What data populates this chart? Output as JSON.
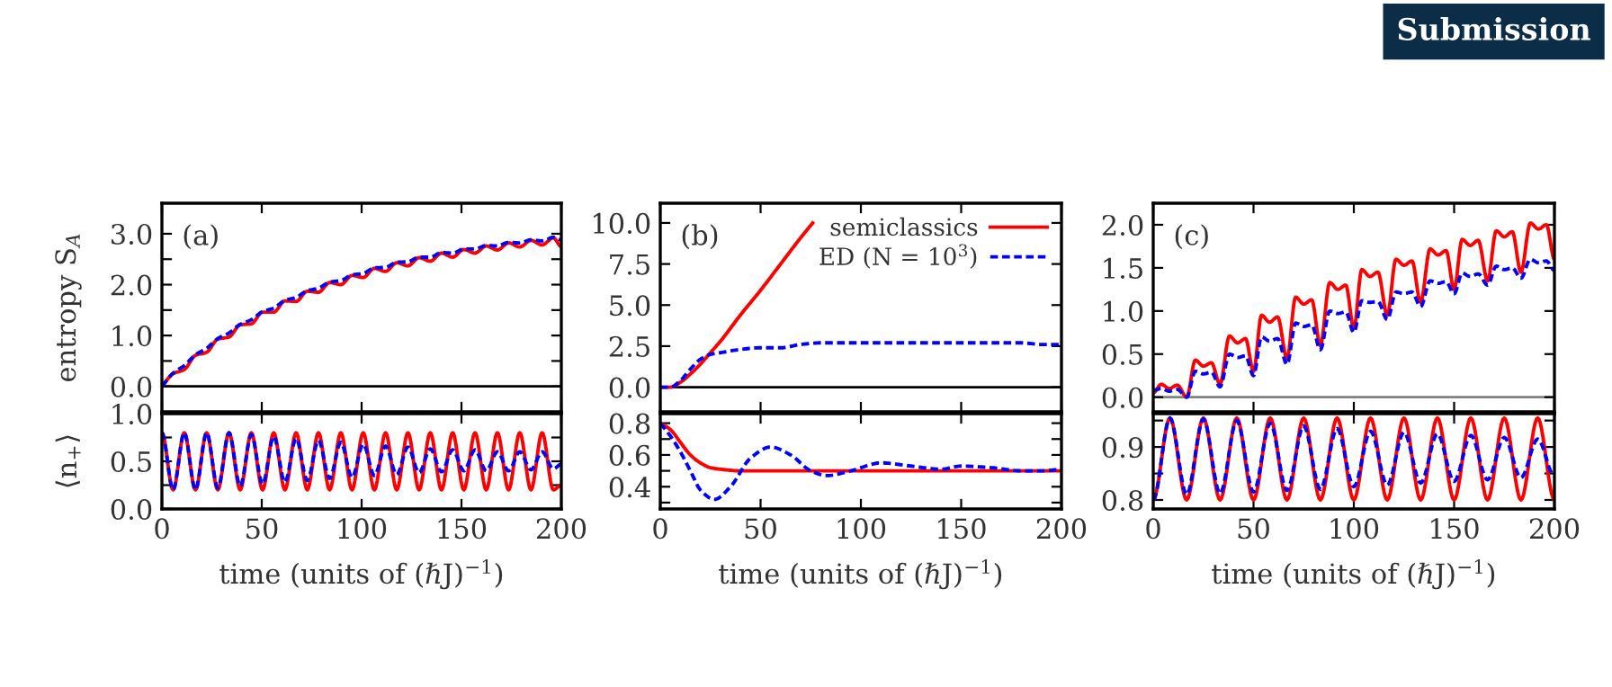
{
  "chart_data": [
    {
      "type": "line",
      "ylabel": "entropy S$_{A}$",
      "annotations": [
        "(a)"
      ],
      "tick_labels": "y",
      "xlim": [
        0,
        200
      ],
      "xticks": [
        0,
        50,
        100,
        150,
        200
      ],
      "ylim": [
        -0.5,
        3.6
      ],
      "yticks": [
        {
          "value": 0,
          "label": "0.0"
        },
        {
          "value": 0.5,
          "label": null
        },
        {
          "value": 1,
          "label": "1.0"
        },
        {
          "value": 1.5,
          "label": null
        },
        {
          "value": 2,
          "label": "2.0"
        },
        {
          "value": 2.5,
          "label": null
        },
        {
          "value": 3,
          "label": "3.0"
        }
      ],
      "ref_lines": [
        {
          "axis": "y",
          "value": 0,
          "color": "#000000"
        }
      ],
      "series": [
        {
          "color": "#ff0000",
          "line_style": "solid",
          "x": [
            0,
            5.6,
            11.2,
            16.8,
            22.4,
            28,
            33.6,
            39.2,
            44.8,
            50.4,
            56,
            61.6,
            67.2,
            72.8,
            78.4,
            84,
            89.6,
            95.2,
            100.8,
            106.4,
            112,
            117.6,
            123.2,
            128.8,
            134.4,
            140,
            145.6,
            151.2,
            156.8,
            162.4,
            168,
            173.6,
            179.2,
            184.8,
            190.4,
            196,
            200
          ],
          "values": [
            0,
            0.25,
            0.33,
            0.61,
            0.67,
            0.93,
            0.97,
            1.21,
            1.23,
            1.46,
            1.46,
            1.68,
            1.67,
            1.87,
            1.85,
            2.04,
            2.0,
            2.18,
            2.14,
            2.32,
            2.26,
            2.43,
            2.37,
            2.53,
            2.46,
            2.62,
            2.54,
            2.69,
            2.62,
            2.76,
            2.68,
            2.82,
            2.74,
            2.87,
            2.78,
            2.92,
            2.75
          ]
        },
        {
          "color": "#0000ff",
          "line_style": "dashed",
          "x": [
            0,
            5.6,
            11.2,
            16.8,
            22.4,
            28,
            33.6,
            39.2,
            44.8,
            50.4,
            56,
            61.6,
            67.2,
            72.8,
            78.4,
            84,
            89.6,
            95.2,
            100.8,
            106.4,
            112,
            117.6,
            123.2,
            128.8,
            134.4,
            140,
            145.6,
            151.2,
            156.8,
            162.4,
            168,
            173.6,
            179.2,
            184.8,
            190.4,
            196,
            200
          ],
          "values": [
            0,
            0.26,
            0.41,
            0.62,
            0.75,
            0.94,
            1.05,
            1.22,
            1.31,
            1.47,
            1.54,
            1.69,
            1.75,
            1.88,
            1.93,
            2.05,
            2.08,
            2.19,
            2.22,
            2.33,
            2.34,
            2.44,
            2.45,
            2.54,
            2.54,
            2.63,
            2.62,
            2.7,
            2.7,
            2.77,
            2.76,
            2.83,
            2.82,
            2.88,
            2.86,
            2.93,
            2.88
          ]
        }
      ]
    },
    {
      "type": "line",
      "ylabel": "⟨n$_{+}$⟩",
      "xlabel": "time (units of (ℏJ)$^{−1}$)",
      "xlim": [
        0,
        200
      ],
      "xticks": [
        0,
        50,
        100,
        150,
        200
      ],
      "ylim": [
        0,
        1
      ],
      "yticks": [
        {
          "value": 0,
          "label": "0.0"
        },
        {
          "value": 0.25,
          "label": null
        },
        {
          "value": 0.5,
          "label": "0.5"
        },
        {
          "value": 0.75,
          "label": null
        },
        {
          "value": 1,
          "label": "1.0"
        }
      ],
      "series": [
        {
          "color": "#ff0000",
          "line_style": "solid",
          "x": [
            0,
            5.6,
            11.2,
            16.8,
            22.4,
            28,
            33.6,
            39.2,
            44.8,
            50.4,
            56,
            61.6,
            67.2,
            72.8,
            78.4,
            84,
            89.6,
            95.2,
            100.8,
            106.4,
            112,
            117.6,
            123.2,
            128.8,
            134.4,
            140,
            145.6,
            151.2,
            156.8,
            162.4,
            168,
            173.6,
            179.2,
            184.8,
            190.4,
            196,
            200
          ],
          "values": [
            0.8,
            0.2,
            0.8,
            0.2,
            0.8,
            0.2,
            0.8,
            0.2,
            0.8,
            0.2,
            0.8,
            0.2,
            0.8,
            0.2,
            0.8,
            0.2,
            0.8,
            0.2,
            0.8,
            0.2,
            0.8,
            0.2,
            0.8,
            0.2,
            0.8,
            0.2,
            0.8,
            0.2,
            0.8,
            0.2,
            0.8,
            0.2,
            0.8,
            0.2,
            0.8,
            0.2,
            0.25
          ]
        },
        {
          "color": "#0000ff",
          "line_style": "dashed",
          "x": [
            0,
            5.6,
            11.2,
            16.8,
            22.4,
            28,
            33.6,
            39.2,
            44.8,
            50.4,
            56,
            61.6,
            67.2,
            72.8,
            78.4,
            84,
            89.6,
            95.2,
            100.8,
            106.4,
            112,
            117.6,
            123.2,
            128.8,
            134.4,
            140,
            145.6,
            151.2,
            156.8,
            162.4,
            168,
            173.6,
            179.2,
            184.8,
            190.4,
            196,
            200
          ],
          "values": [
            0.8,
            0.2,
            0.8,
            0.2,
            0.8,
            0.22,
            0.8,
            0.24,
            0.78,
            0.26,
            0.76,
            0.28,
            0.74,
            0.3,
            0.72,
            0.32,
            0.7,
            0.33,
            0.68,
            0.35,
            0.66,
            0.36,
            0.65,
            0.38,
            0.63,
            0.39,
            0.62,
            0.4,
            0.62,
            0.4,
            0.6,
            0.4,
            0.6,
            0.41,
            0.6,
            0.42,
            0.47
          ]
        }
      ]
    },
    {
      "type": "line",
      "annotations": [
        "(b)"
      ],
      "tick_labels": "y",
      "legend": "top right",
      "xlim": [
        0,
        200
      ],
      "xticks": [
        0,
        50,
        100,
        150,
        200
      ],
      "ylim": [
        -1.5,
        11.2
      ],
      "yticks": [
        {
          "value": 0,
          "label": "0.0"
        },
        {
          "value": 2.5,
          "label": "2.5"
        },
        {
          "value": 5,
          "label": "5.0"
        },
        {
          "value": 7.5,
          "label": "7.5"
        },
        {
          "value": 10,
          "label": "10.0"
        }
      ],
      "ref_lines": [
        {
          "axis": "y",
          "value": 0,
          "color": "#000000"
        }
      ],
      "series": [
        {
          "name": "semiclassics",
          "color": "#ff0000",
          "line_style": "solid",
          "x": [
            0,
            5,
            10,
            15,
            20,
            25,
            30,
            40,
            50,
            60,
            70,
            76
          ],
          "values": [
            0,
            0,
            0.3,
            0.8,
            1.4,
            2.1,
            2.8,
            4.4,
            5.9,
            7.5,
            9.1,
            10.0
          ]
        },
        {
          "name": "ED (N = 10$^{3}$)",
          "color": "#0000ff",
          "line_style": "dashed",
          "x": [
            0,
            5,
            10,
            15,
            20,
            25,
            30,
            40,
            50,
            60,
            70,
            80,
            90,
            100,
            110,
            120,
            130,
            140,
            150,
            160,
            170,
            180,
            190,
            200
          ],
          "values": [
            0,
            0,
            0.4,
            1.1,
            1.7,
            2.0,
            2.1,
            2.3,
            2.4,
            2.4,
            2.6,
            2.7,
            2.7,
            2.7,
            2.7,
            2.7,
            2.7,
            2.7,
            2.7,
            2.7,
            2.7,
            2.7,
            2.6,
            2.6
          ]
        }
      ]
    },
    {
      "type": "line",
      "xlabel": "time (units of (ℏJ)$^{−1}$)",
      "xlim": [
        0,
        200
      ],
      "xticks": [
        0,
        50,
        100,
        150,
        200
      ],
      "ylim": [
        0.26,
        0.86
      ],
      "yticks": [
        {
          "value": 0.3,
          "label": null
        },
        {
          "value": 0.4,
          "label": "0.4"
        },
        {
          "value": 0.5,
          "label": null
        },
        {
          "value": 0.6,
          "label": "0.6"
        },
        {
          "value": 0.7,
          "label": null
        },
        {
          "value": 0.8,
          "label": "0.8"
        }
      ],
      "series": [
        {
          "color": "#ff0000",
          "line_style": "solid",
          "x": [
            0,
            5,
            10,
            15,
            20,
            25,
            30,
            40,
            200
          ],
          "values": [
            0.8,
            0.76,
            0.68,
            0.6,
            0.55,
            0.52,
            0.51,
            0.5,
            0.5
          ]
        },
        {
          "color": "#0000ff",
          "line_style": "dashed",
          "x": [
            0,
            5,
            10,
            15,
            20,
            27,
            35,
            45,
            55,
            65,
            75,
            83,
            95,
            110,
            125,
            140,
            150,
            165,
            180,
            190,
            200
          ],
          "values": [
            0.8,
            0.72,
            0.62,
            0.5,
            0.38,
            0.32,
            0.4,
            0.58,
            0.65,
            0.6,
            0.5,
            0.47,
            0.5,
            0.55,
            0.53,
            0.51,
            0.53,
            0.52,
            0.5,
            0.5,
            0.51
          ]
        }
      ]
    },
    {
      "type": "line",
      "annotations": [
        "(c)",
        "Submission"
      ],
      "tick_labels": "y",
      "xlim": [
        0,
        200
      ],
      "xticks": [
        0,
        50,
        100,
        150,
        200
      ],
      "ylim": [
        -0.17,
        2.25
      ],
      "yticks": [
        {
          "value": 0,
          "label": "0.0"
        },
        {
          "value": 0.5,
          "label": "0.5"
        },
        {
          "value": 1,
          "label": "1.0"
        },
        {
          "value": 1.5,
          "label": "1.5"
        },
        {
          "value": 2,
          "label": "2.0"
        }
      ],
      "ref_lines": [
        {
          "axis": "y",
          "value": 0,
          "color": "#808080"
        }
      ],
      "series": [
        {
          "color": "#ff0000",
          "line_style": "solid",
          "x": [
            0,
            4,
            8,
            12,
            16.7,
            21,
            25,
            29,
            33.3,
            38,
            42,
            46,
            50,
            54,
            58,
            62,
            66.7,
            71,
            75,
            79,
            83.3,
            88,
            92,
            96,
            100,
            104,
            108,
            112,
            116.7,
            121,
            125,
            129,
            133.3,
            138,
            142,
            146,
            150,
            154,
            158,
            162,
            166.7,
            171,
            175,
            179,
            183.3,
            188,
            192,
            196,
            200
          ],
          "values": [
            0.05,
            0.15,
            0.1,
            0.14,
            0.0,
            0.43,
            0.36,
            0.4,
            0.15,
            0.71,
            0.63,
            0.68,
            0.3,
            0.95,
            0.87,
            0.93,
            0.45,
            1.16,
            1.08,
            1.13,
            0.6,
            1.33,
            1.25,
            1.3,
            0.8,
            1.48,
            1.4,
            1.45,
            0.95,
            1.6,
            1.53,
            1.58,
            1.1,
            1.72,
            1.65,
            1.7,
            1.25,
            1.83,
            1.76,
            1.82,
            1.35,
            1.93,
            1.86,
            1.92,
            1.45,
            2.02,
            1.95,
            2.0,
            1.6
          ]
        },
        {
          "color": "#0000ff",
          "line_style": "dashed",
          "x": [
            0,
            4,
            8,
            12,
            16.7,
            21,
            25,
            29,
            33.3,
            38,
            42,
            46,
            50,
            54,
            58,
            62,
            66.7,
            71,
            75,
            79,
            83.3,
            88,
            92,
            96,
            100,
            104,
            108,
            112,
            116.7,
            121,
            125,
            129,
            133.3,
            138,
            142,
            146,
            150,
            154,
            158,
            162,
            166.7,
            171,
            175,
            179,
            183.3,
            188,
            192,
            196,
            200
          ],
          "values": [
            0.08,
            0.1,
            0.07,
            0.09,
            0.0,
            0.3,
            0.27,
            0.29,
            0.12,
            0.5,
            0.46,
            0.48,
            0.25,
            0.7,
            0.65,
            0.68,
            0.38,
            0.86,
            0.82,
            0.84,
            0.55,
            1.0,
            0.97,
            0.99,
            0.75,
            1.12,
            1.1,
            1.11,
            0.9,
            1.22,
            1.2,
            1.22,
            1.05,
            1.35,
            1.32,
            1.34,
            1.2,
            1.44,
            1.4,
            1.43,
            1.3,
            1.52,
            1.48,
            1.5,
            1.38,
            1.6,
            1.56,
            1.58,
            1.47
          ]
        }
      ]
    },
    {
      "type": "line",
      "xlabel": "time (units of (ℏJ)$^{−1}$)",
      "xlim": [
        0,
        200
      ],
      "xticks": [
        0,
        50,
        100,
        150,
        200
      ],
      "ylim": [
        0.783,
        0.963
      ],
      "yticks": [
        {
          "value": 0.8,
          "label": "0.8"
        },
        {
          "value": 0.85,
          "label": null
        },
        {
          "value": 0.9,
          "label": "0.9"
        },
        {
          "value": 0.95,
          "label": null
        }
      ],
      "series": [
        {
          "color": "#ff0000",
          "line_style": "solid",
          "x": [
            0,
            8.33,
            16.67,
            25,
            33.33,
            41.67,
            50,
            58.33,
            66.67,
            75,
            83.33,
            91.67,
            100,
            108.33,
            116.67,
            125,
            133.33,
            141.67,
            150,
            158.33,
            166.67,
            175,
            183.33,
            191.67,
            200
          ],
          "values": [
            0.8,
            0.955,
            0.8,
            0.955,
            0.8,
            0.955,
            0.8,
            0.955,
            0.8,
            0.955,
            0.8,
            0.955,
            0.8,
            0.955,
            0.8,
            0.955,
            0.8,
            0.955,
            0.8,
            0.955,
            0.8,
            0.955,
            0.8,
            0.955,
            0.8
          ]
        },
        {
          "color": "#0000ff",
          "line_style": "dashed",
          "x": [
            0,
            8.33,
            16.67,
            25,
            33.33,
            41.67,
            50,
            58.33,
            66.67,
            75,
            83.33,
            91.67,
            100,
            108.33,
            116.67,
            125,
            133.33,
            141.67,
            150,
            158.33,
            166.67,
            175,
            183.33,
            191.67,
            200
          ],
          "values": [
            0.8,
            0.955,
            0.81,
            0.953,
            0.812,
            0.95,
            0.815,
            0.945,
            0.818,
            0.94,
            0.82,
            0.935,
            0.825,
            0.93,
            0.828,
            0.928,
            0.832,
            0.925,
            0.835,
            0.922,
            0.838,
            0.918,
            0.842,
            0.915,
            0.845
          ]
        }
      ]
    }
  ]
}
